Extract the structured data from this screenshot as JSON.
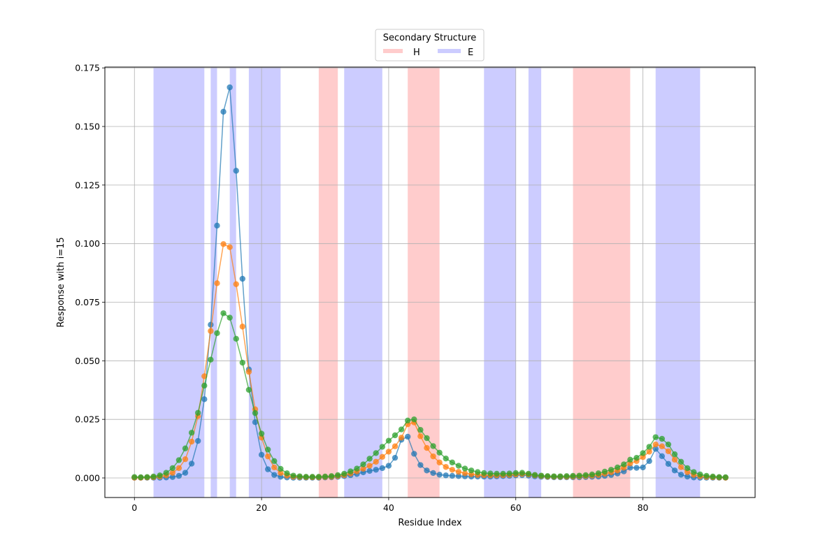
{
  "chart_data": {
    "type": "line",
    "xlabel": "Residue Index",
    "ylabel": "Response with i=15",
    "xlim": [
      -4.65,
      97.65
    ],
    "ylim": [
      -0.00835,
      0.17535
    ],
    "x_ticks": [
      0,
      20,
      40,
      60,
      80
    ],
    "y_ticks": [
      0.0,
      0.025,
      0.05,
      0.075,
      0.1,
      0.125,
      0.15,
      0.175
    ],
    "x_tick_labels": [
      "0",
      "20",
      "40",
      "60",
      "80"
    ],
    "y_tick_labels": [
      "0.000",
      "0.025",
      "0.050",
      "0.075",
      "0.100",
      "0.125",
      "0.150",
      "0.175"
    ],
    "grid": true,
    "legend": {
      "title": "Secondary Structure",
      "placement": "top-center-outside",
      "entries": [
        {
          "label": "H",
          "color": "#ffcccc"
        },
        {
          "label": "E",
          "color": "#ccccff"
        }
      ]
    },
    "regions": [
      {
        "type": "E",
        "start": 3,
        "end": 11
      },
      {
        "type": "E",
        "start": 12,
        "end": 13
      },
      {
        "type": "E",
        "start": 15,
        "end": 16
      },
      {
        "type": "E",
        "start": 18,
        "end": 23
      },
      {
        "type": "H",
        "start": 29,
        "end": 32
      },
      {
        "type": "E",
        "start": 33,
        "end": 39
      },
      {
        "type": "H",
        "start": 43,
        "end": 48
      },
      {
        "type": "E",
        "start": 55,
        "end": 60
      },
      {
        "type": "E",
        "start": 62,
        "end": 64
      },
      {
        "type": "H",
        "start": 69,
        "end": 78
      },
      {
        "type": "E",
        "start": 82,
        "end": 89
      }
    ],
    "region_colors": {
      "H": "#ffcccc",
      "E": "#ccccff"
    },
    "series": [
      {
        "color": "#1f77b4",
        "values": [
          0.0001,
          0.0001,
          0.0001,
          0.0001,
          0.0001,
          0.0002,
          0.0004,
          0.0009,
          0.0022,
          0.0061,
          0.0158,
          0.0336,
          0.0654,
          0.1077,
          0.1563,
          0.1667,
          0.1311,
          0.085,
          0.0463,
          0.0238,
          0.0099,
          0.0037,
          0.0013,
          0.0005,
          0.0002,
          0.0001,
          0.0001,
          0.0001,
          0.0001,
          0.0001,
          0.0002,
          0.0003,
          0.0005,
          0.0008,
          0.0012,
          0.0017,
          0.0024,
          0.003,
          0.0035,
          0.0042,
          0.0052,
          0.0086,
          0.0163,
          0.0176,
          0.0103,
          0.0055,
          0.0032,
          0.0021,
          0.0014,
          0.0011,
          0.0009,
          0.0008,
          0.0007,
          0.0006,
          0.0006,
          0.0006,
          0.0006,
          0.0007,
          0.0008,
          0.0009,
          0.0011,
          0.0012,
          0.001,
          0.0007,
          0.0005,
          0.0004,
          0.0003,
          0.0003,
          0.0003,
          0.0003,
          0.0003,
          0.0004,
          0.0005,
          0.0006,
          0.0009,
          0.0013,
          0.0019,
          0.0028,
          0.0044,
          0.0043,
          0.0045,
          0.0072,
          0.0124,
          0.0093,
          0.006,
          0.0032,
          0.0014,
          0.0006,
          0.0002,
          0.0001,
          0.0001,
          0.0001,
          0.0001,
          0.0001
        ]
      },
      {
        "color": "#ff7f0e",
        "values": [
          0.0001,
          0.0001,
          0.0002,
          0.0003,
          0.0006,
          0.0011,
          0.0022,
          0.0042,
          0.008,
          0.0155,
          0.0264,
          0.0434,
          0.0627,
          0.0831,
          0.0998,
          0.0985,
          0.0827,
          0.0646,
          0.0453,
          0.0293,
          0.0172,
          0.0092,
          0.0045,
          0.0021,
          0.001,
          0.0005,
          0.0004,
          0.0003,
          0.0003,
          0.0003,
          0.0004,
          0.0005,
          0.0008,
          0.0012,
          0.0019,
          0.0028,
          0.0039,
          0.0052,
          0.0069,
          0.009,
          0.0112,
          0.0135,
          0.0172,
          0.0229,
          0.0237,
          0.0178,
          0.0128,
          0.0092,
          0.0066,
          0.0047,
          0.0035,
          0.0026,
          0.002,
          0.0016,
          0.0013,
          0.0012,
          0.0011,
          0.0011,
          0.0012,
          0.0013,
          0.0015,
          0.0017,
          0.0015,
          0.0011,
          0.0008,
          0.0006,
          0.0005,
          0.0005,
          0.0005,
          0.0006,
          0.0007,
          0.0008,
          0.001,
          0.0013,
          0.0018,
          0.0024,
          0.0032,
          0.0044,
          0.0062,
          0.0072,
          0.0089,
          0.0112,
          0.0143,
          0.0135,
          0.0114,
          0.0078,
          0.0046,
          0.0025,
          0.0013,
          0.0007,
          0.0004,
          0.0003,
          0.0002,
          0.0001
        ]
      },
      {
        "color": "#2ca02c",
        "values": [
          0.0004,
          0.0003,
          0.0004,
          0.0006,
          0.0011,
          0.0022,
          0.0042,
          0.0076,
          0.0126,
          0.0193,
          0.0278,
          0.0394,
          0.0505,
          0.0618,
          0.0703,
          0.0684,
          0.0594,
          0.0492,
          0.0376,
          0.0277,
          0.0189,
          0.0121,
          0.0072,
          0.0039,
          0.002,
          0.001,
          0.0007,
          0.0005,
          0.0005,
          0.0005,
          0.0006,
          0.0008,
          0.0012,
          0.0018,
          0.0028,
          0.004,
          0.0058,
          0.0082,
          0.0106,
          0.0133,
          0.0159,
          0.0182,
          0.0207,
          0.0245,
          0.025,
          0.0205,
          0.017,
          0.0136,
          0.0108,
          0.0083,
          0.0066,
          0.0052,
          0.004,
          0.0032,
          0.0025,
          0.0021,
          0.0019,
          0.0018,
          0.0018,
          0.0019,
          0.0021,
          0.0022,
          0.0018,
          0.0013,
          0.001,
          0.0008,
          0.0007,
          0.0007,
          0.0008,
          0.0009,
          0.001,
          0.0012,
          0.0015,
          0.002,
          0.0027,
          0.0035,
          0.0045,
          0.0058,
          0.0078,
          0.0086,
          0.0106,
          0.0133,
          0.0174,
          0.0167,
          0.0143,
          0.0101,
          0.0069,
          0.0042,
          0.0025,
          0.0015,
          0.0009,
          0.0006,
          0.0004,
          0.0003
        ]
      }
    ]
  }
}
